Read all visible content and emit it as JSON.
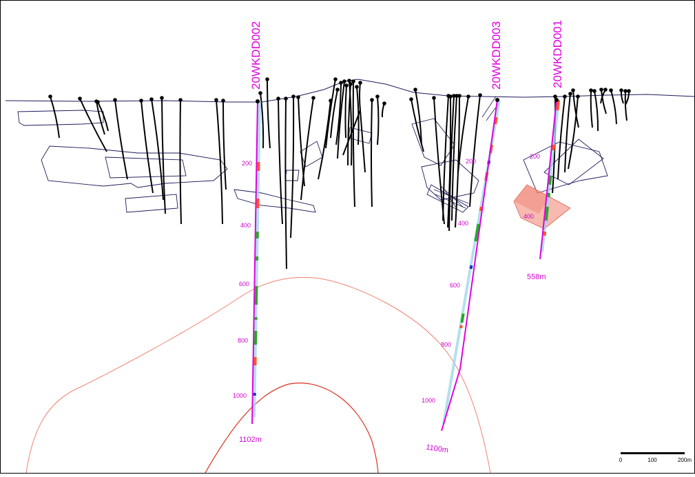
{
  "holes": [
    {
      "id": "20WKDD002",
      "name": "20WKDD002",
      "end_depth_label": "1102m",
      "depth_ticks": [
        "200",
        "400",
        "600",
        "800",
        "1000"
      ]
    },
    {
      "id": "20WKDD003",
      "name": "20WKDD003",
      "end_depth_label": "1100m",
      "depth_ticks": [
        "200",
        "400",
        "600",
        "800",
        "1000"
      ]
    },
    {
      "id": "20WKDD001",
      "name": "20WKDD001",
      "end_depth_label": "558m",
      "depth_ticks": [
        "200",
        "400"
      ]
    }
  ],
  "scale_bar": {
    "labels": [
      "0",
      "100",
      "200m"
    ]
  },
  "colors": {
    "highlight_hole": "#e000e0",
    "core_trace": "#9fd8e8",
    "assay_green": "#22aa22",
    "assay_orange": "#ff5522",
    "assay_blue": "#1133cc",
    "historic_holes": "#000000",
    "workings": "#1a1a5a",
    "anomaly_outer": "#f08070",
    "anomaly_inner": "#d83020",
    "target_fill": "#f08070"
  }
}
